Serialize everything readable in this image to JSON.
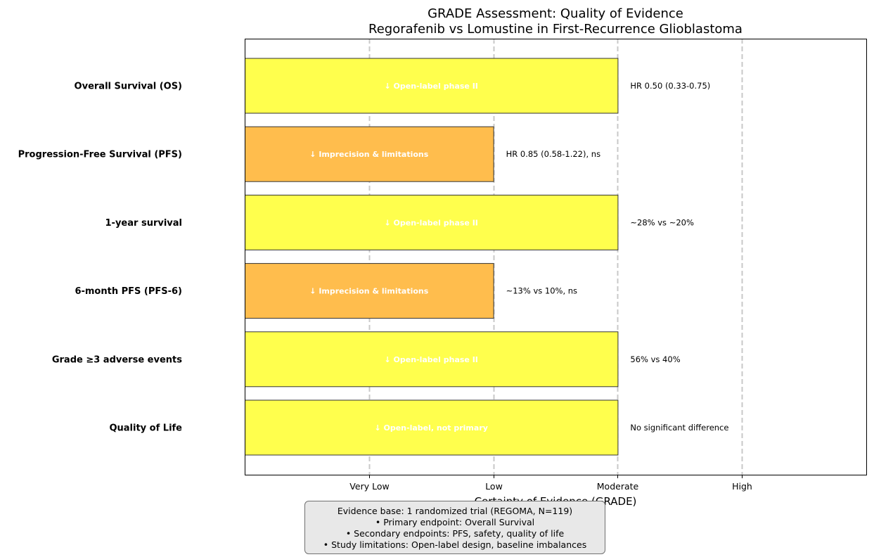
{
  "chart_data": {
    "type": "bar",
    "orientation": "horizontal",
    "title": "GRADE Assessment: Quality of Evidence",
    "subtitle": "Regorafenib vs Lomustine in First-Recurrence Glioblastoma",
    "xlabel": "Certainty of Evidence (GRADE)",
    "ylabel": "",
    "x_ticks": [
      {
        "value": 1,
        "label": "Very Low"
      },
      {
        "value": 2,
        "label": "Low"
      },
      {
        "value": 3,
        "label": "Moderate"
      },
      {
        "value": 4,
        "label": "High"
      }
    ],
    "xlim": [
      0,
      5
    ],
    "grid": "vertical-dashed",
    "categories": [
      "Overall Survival (OS)",
      "Progression-Free Survival (PFS)",
      "1-year survival",
      "6-month PFS (PFS-6)",
      "Grade ≥3 adverse events",
      "Quality of Life"
    ],
    "values": [
      3,
      2,
      3,
      2,
      3,
      3
    ],
    "bar_labels": [
      "↓ Open-label phase II",
      "↓ Imprecision & limitations",
      "↓ Open-label phase II",
      "↓ Imprecision & limitations",
      "↓ Open-label phase II",
      "↓ Open-label, not primary"
    ],
    "annotations": [
      "HR 0.50 (0.33-0.75)",
      "HR 0.85 (0.58-1.22), ns",
      "~28% vs ~20%",
      "~13% vs 10%, ns",
      "56% vs 40%",
      "No significant difference"
    ],
    "level_colors": {
      "2": "#ffbd4d",
      "3": "#ffff4d"
    },
    "bar_label_color": "#ffffff",
    "edge_color": "#333333"
  },
  "evidence_box": {
    "lines": [
      "Evidence base: 1 randomized trial (REGOMA, N=119)",
      "• Primary endpoint: Overall Survival",
      "• Secondary endpoints: PFS, safety, quality of life",
      "• Study limitations: Open-label design, baseline imbalances"
    ]
  }
}
